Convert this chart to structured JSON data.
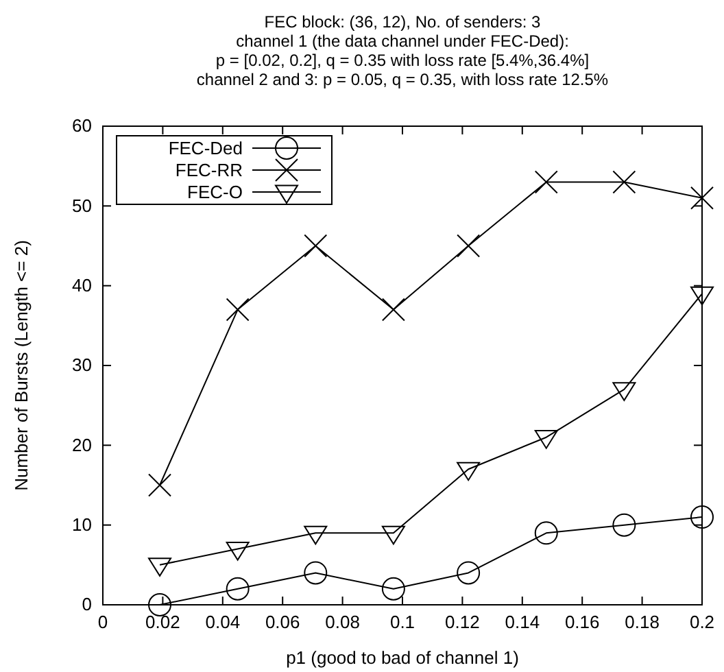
{
  "chart_data": {
    "type": "line",
    "title": "FEC block: (36, 12), No. of senders: 3\nchannel 1 (the data channel under FEC-Ded):\np = [0.02, 0.2], q = 0.35 with loss rate [5.4%,36.4%]\nchannel 2 and 3: p = 0.05, q = 0.35, with loss rate 12.5%",
    "xlabel": "p1 (good to bad of channel 1)",
    "ylabel": "Number of Bursts (Length <= 2)",
    "x": [
      0.019,
      0.045,
      0.071,
      0.097,
      0.122,
      0.148,
      0.174,
      0.2
    ],
    "series": [
      {
        "name": "FEC-Ded",
        "color": "#000000",
        "marker": "circle",
        "values": [
          0,
          2,
          4,
          2,
          4,
          9,
          10,
          11
        ]
      },
      {
        "name": "FEC-RR",
        "color": "#000000",
        "marker": "cross",
        "values": [
          15,
          37,
          45,
          37,
          45,
          53,
          53,
          51
        ]
      },
      {
        "name": "FEC-O",
        "color": "#000000",
        "marker": "triangle",
        "values": [
          5,
          7,
          9,
          9,
          17,
          21,
          27,
          39
        ]
      }
    ],
    "xlim": [
      0,
      0.2
    ],
    "xticks": [
      0,
      0.02,
      0.04,
      0.06,
      0.08,
      0.1,
      0.12,
      0.14,
      0.16,
      0.18,
      0.2
    ],
    "ylim": [
      0,
      60
    ],
    "yticks": [
      0,
      10,
      20,
      30,
      40,
      50,
      60
    ],
    "grid": false,
    "legend": "top left",
    "line_style": "solid"
  }
}
